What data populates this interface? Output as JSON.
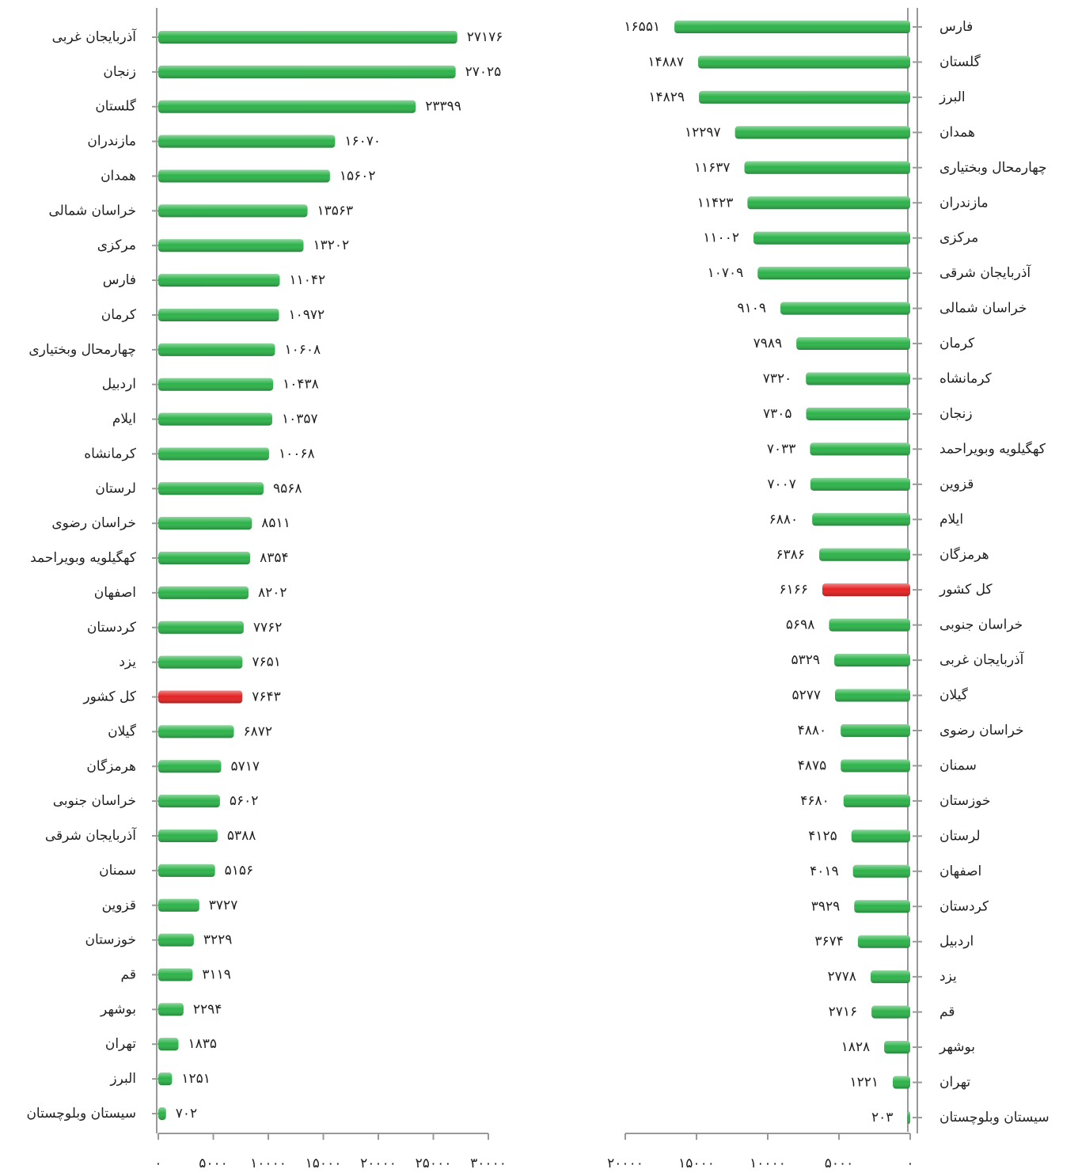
{
  "chart_data": [
    {
      "type": "bar",
      "orientation": "horizontal",
      "xaxis_reversed": false,
      "categories": [
        "آذربایجان غربی",
        "زنجان",
        "گلستان",
        "مازندران",
        "همدان",
        "خراسان شمالی",
        "مرکزی",
        "فارس",
        "کرمان",
        "چهارمحال وبختیاری",
        "اردبیل",
        "ایلام",
        "کرمانشاه",
        "لرستان",
        "خراسان رضوی",
        "کهگیلویه وبویراحمد",
        "اصفهان",
        "کردستان",
        "یزد",
        "کل کشور",
        "گیلان",
        "هرمزگان",
        "خراسان جنوبی",
        "آذربایجان شرقی",
        "سمنان",
        "قزوین",
        "خوزستان",
        "قم",
        "بوشهر",
        "تهران",
        "البرز",
        "سیستان وبلوچستان"
      ],
      "values": [
        27176,
        27025,
        23399,
        16070,
        15602,
        13563,
        13202,
        11042,
        10972,
        10608,
        10438,
        10357,
        10068,
        9568,
        8511,
        8354,
        8202,
        7762,
        7651,
        7643,
        6872,
        5717,
        5602,
        5388,
        5156,
        3727,
        3229,
        3119,
        2294,
        1835,
        1251,
        702
      ],
      "value_labels": [
        "۲۷۱۷۶",
        "۲۷۰۲۵",
        "۲۳۳۹۹",
        "۱۶۰۷۰",
        "۱۵۶۰۲",
        "۱۳۵۶۳",
        "۱۳۲۰۲",
        "۱۱۰۴۲",
        "۱۰۹۷۲",
        "۱۰۶۰۸",
        "۱۰۴۳۸",
        "۱۰۳۵۷",
        "۱۰۰۶۸",
        "۹۵۶۸",
        "۸۵۱۱",
        "۸۳۵۴",
        "۸۲۰۲",
        "۷۷۶۲",
        "۷۶۵۱",
        "۷۶۴۳",
        "۶۸۷۲",
        "۵۷۱۷",
        "۵۶۰۲",
        "۵۳۸۸",
        "۵۱۵۶",
        "۳۷۲۷",
        "۳۲۲۹",
        "۳۱۱۹",
        "۲۲۹۴",
        "۱۸۳۵",
        "۱۲۵۱",
        "۷۰۲"
      ],
      "colors": [
        "#2db34a",
        "#2db34a",
        "#2db34a",
        "#2db34a",
        "#2db34a",
        "#2db34a",
        "#2db34a",
        "#2db34a",
        "#2db34a",
        "#2db34a",
        "#2db34a",
        "#2db34a",
        "#2db34a",
        "#2db34a",
        "#2db34a",
        "#2db34a",
        "#2db34a",
        "#2db34a",
        "#2db34a",
        "#e52222",
        "#2db34a",
        "#2db34a",
        "#2db34a",
        "#2db34a",
        "#2db34a",
        "#2db34a",
        "#2db34a",
        "#2db34a",
        "#2db34a",
        "#2db34a",
        "#2db34a",
        "#2db34a"
      ],
      "xlim": [
        0,
        30000
      ],
      "xticks": [
        {
          "value": 0,
          "label": "۰"
        },
        {
          "value": 5000,
          "label": "۵۰۰۰"
        },
        {
          "value": 10000,
          "label": "۱۰۰۰۰"
        },
        {
          "value": 15000,
          "label": "۱۵۰۰۰"
        },
        {
          "value": 20000,
          "label": "۲۰۰۰۰"
        },
        {
          "value": 25000,
          "label": "۲۵۰۰۰"
        },
        {
          "value": 30000,
          "label": "۳۰۰۰۰"
        }
      ]
    },
    {
      "type": "bar",
      "orientation": "horizontal",
      "xaxis_reversed": true,
      "categories": [
        "فارس",
        "گلستان",
        "البرز",
        "همدان",
        "چهارمحال وبختیاری",
        "مازندران",
        "مرکزی",
        "آذربایجان شرقی",
        "خراسان شمالی",
        "کرمان",
        "کرمانشاه",
        "زنجان",
        "کهگیلویه وبویراحمد",
        "قزوین",
        "ایلام",
        "هرمزگان",
        "کل کشور",
        "خراسان جنوبی",
        "آذربایجان غربی",
        "گیلان",
        "خراسان رضوی",
        "سمنان",
        "خوزستان",
        "لرستان",
        "اصفهان",
        "کردستان",
        "اردبیل",
        "یزد",
        "قم",
        "بوشهر",
        "تهران",
        "سیستان وبلوچستان"
      ],
      "values": [
        16551,
        14887,
        14829,
        12297,
        11637,
        11423,
        11002,
        10709,
        9109,
        7989,
        7320,
        7305,
        7033,
        7007,
        6880,
        6386,
        6166,
        5698,
        5329,
        5277,
        4880,
        4875,
        4680,
        4125,
        4019,
        3929,
        3674,
        2778,
        2716,
        1828,
        1221,
        203
      ],
      "value_labels": [
        "۱۶۵۵۱",
        "۱۴۸۸۷",
        "۱۴۸۲۹",
        "۱۲۲۹۷",
        "۱۱۶۳۷",
        "۱۱۴۲۳",
        "۱۱۰۰۲",
        "۱۰۷۰۹",
        "۹۱۰۹",
        "۷۹۸۹",
        "۷۳۲۰",
        "۷۳۰۵",
        "۷۰۳۳",
        "۷۰۰۷",
        "۶۸۸۰",
        "۶۳۸۶",
        "۶۱۶۶",
        "۵۶۹۸",
        "۵۳۲۹",
        "۵۲۷۷",
        "۴۸۸۰",
        "۴۸۷۵",
        "۴۶۸۰",
        "۴۱۲۵",
        "۴۰۱۹",
        "۳۹۲۹",
        "۳۶۷۴",
        "۲۷۷۸",
        "۲۷۱۶",
        "۱۸۲۸",
        "۱۲۲۱",
        "۲۰۳"
      ],
      "colors": [
        "#2db34a",
        "#2db34a",
        "#2db34a",
        "#2db34a",
        "#2db34a",
        "#2db34a",
        "#2db34a",
        "#2db34a",
        "#2db34a",
        "#2db34a",
        "#2db34a",
        "#2db34a",
        "#2db34a",
        "#2db34a",
        "#2db34a",
        "#2db34a",
        "#e52222",
        "#2db34a",
        "#2db34a",
        "#2db34a",
        "#2db34a",
        "#2db34a",
        "#2db34a",
        "#2db34a",
        "#2db34a",
        "#2db34a",
        "#2db34a",
        "#2db34a",
        "#2db34a",
        "#2db34a",
        "#2db34a",
        "#2db34a"
      ],
      "xlim": [
        0,
        20000
      ],
      "xticks": [
        {
          "value": 0,
          "label": "۰"
        },
        {
          "value": 5000,
          "label": "۵۰۰۰"
        },
        {
          "value": 10000,
          "label": "۱۰۰۰۰"
        },
        {
          "value": 15000,
          "label": "۱۵۰۰۰"
        },
        {
          "value": 20000,
          "label": "۲۰۰۰۰"
        }
      ]
    }
  ]
}
